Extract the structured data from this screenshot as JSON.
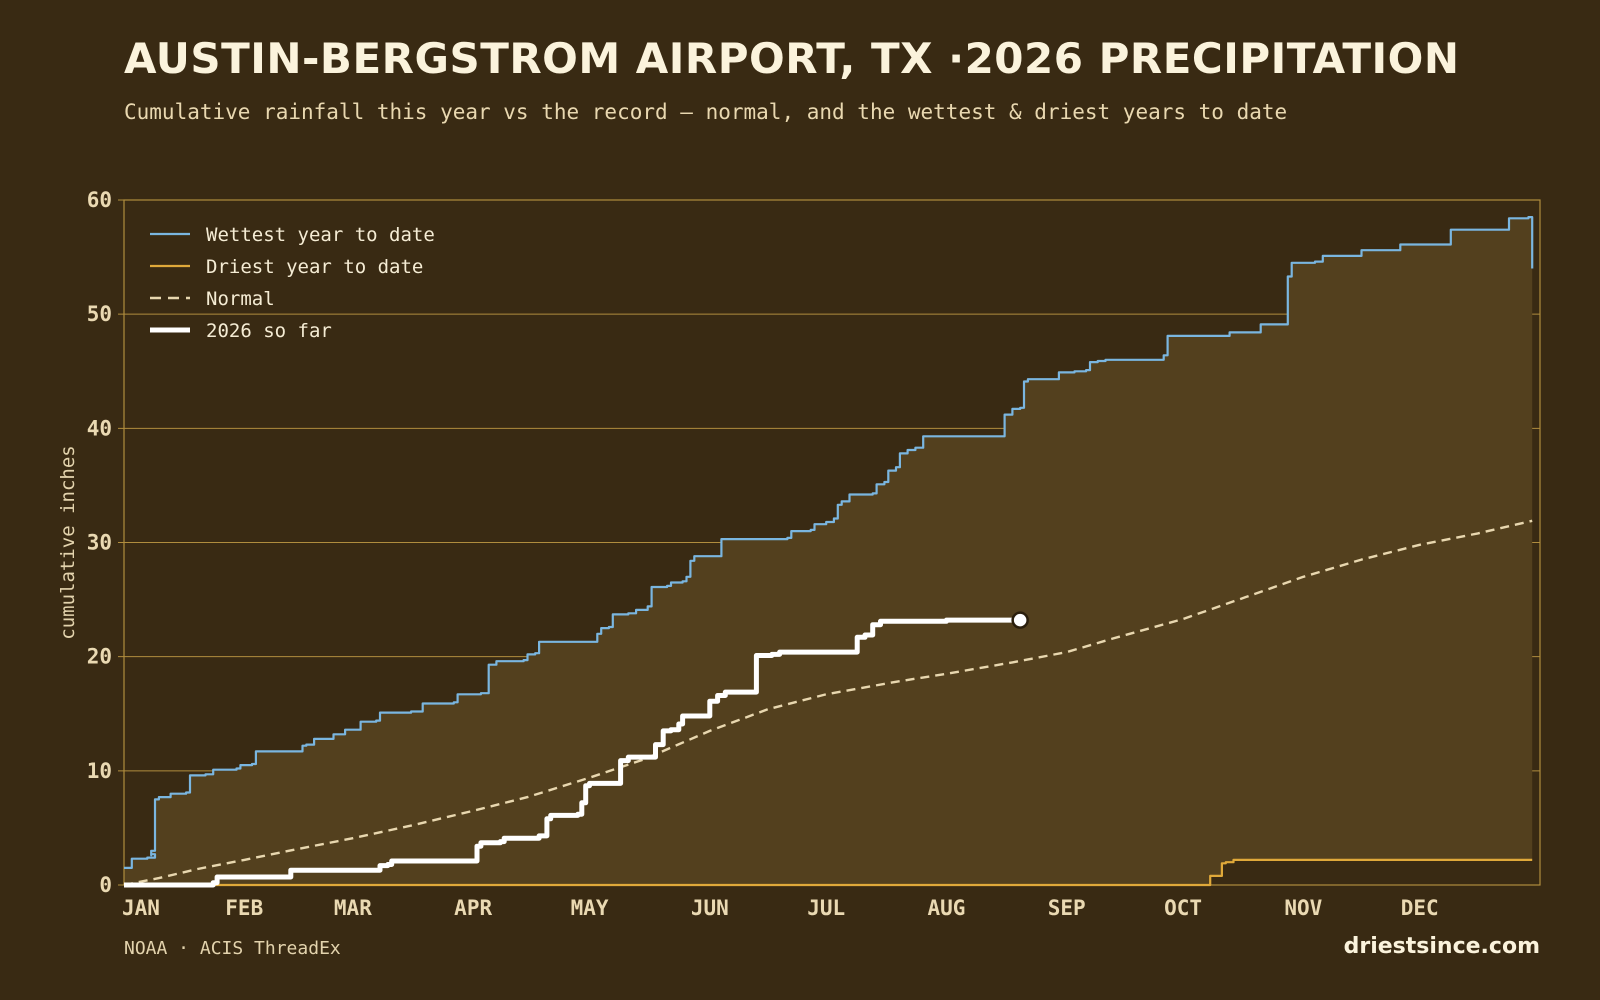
{
  "header": {
    "title": "AUSTIN-BERGSTROM AIRPORT, TX ·2026 PRECIPITATION",
    "subtitle": "Cumulative rainfall this year vs the record — normal, and the wettest & driest years to date"
  },
  "footer": {
    "source": "NOAA · ACIS ThreadEx",
    "brand": "driestsince.com"
  },
  "colors": {
    "background": "#392a13",
    "fill": "#53401e",
    "grid": "#b08d3e",
    "wettest": "#7ab6e0",
    "driest": "#e0a93a",
    "normal": "#e8d7af",
    "current": "#ffffff"
  },
  "chart_data": {
    "type": "line",
    "ylabel": "cumulative inches",
    "ylim": [
      0,
      60
    ],
    "yticks": [
      0,
      10,
      20,
      30,
      40,
      50,
      60
    ],
    "xlim": [
      1,
      366
    ],
    "xticks": [
      {
        "label": "JAN",
        "day": 1
      },
      {
        "label": "FEB",
        "day": 32
      },
      {
        "label": "MAR",
        "day": 60
      },
      {
        "label": "APR",
        "day": 91
      },
      {
        "label": "MAY",
        "day": 121
      },
      {
        "label": "JUN",
        "day": 152
      },
      {
        "label": "JUL",
        "day": 182
      },
      {
        "label": "AUG",
        "day": 213
      },
      {
        "label": "SEP",
        "day": 244
      },
      {
        "label": "OCT",
        "day": 274
      },
      {
        "label": "NOV",
        "day": 305
      },
      {
        "label": "DEC",
        "day": 335
      }
    ],
    "legend_position": "top-left",
    "grid": true,
    "series": [
      {
        "name": "Wettest year to date",
        "key": "wettest",
        "style": "solid",
        "step": true,
        "points": [
          [
            1,
            1.5
          ],
          [
            3,
            2.3
          ],
          [
            7,
            2.4
          ],
          [
            9,
            2.7
          ],
          [
            8,
            2.6
          ],
          [
            8,
            3.0
          ],
          [
            9,
            7.5
          ],
          [
            10,
            7.7
          ],
          [
            12,
            7.7
          ],
          [
            13,
            8.0
          ],
          [
            17,
            8.1
          ],
          [
            18,
            9.6
          ],
          [
            22,
            9.7
          ],
          [
            24,
            10.1
          ],
          [
            30,
            10.2
          ],
          [
            31,
            10.5
          ],
          [
            34,
            10.6
          ],
          [
            35,
            11.7
          ],
          [
            45,
            11.7
          ],
          [
            47,
            12.2
          ],
          [
            48,
            12.3
          ],
          [
            50,
            12.8
          ],
          [
            53,
            12.8
          ],
          [
            55,
            13.2
          ],
          [
            58,
            13.6
          ],
          [
            60,
            13.6
          ],
          [
            62,
            14.3
          ],
          [
            66,
            14.4
          ],
          [
            67,
            15.1
          ],
          [
            75,
            15.2
          ],
          [
            78,
            15.9
          ],
          [
            86,
            16.0
          ],
          [
            87,
            16.7
          ],
          [
            93,
            16.8
          ],
          [
            95,
            19.3
          ],
          [
            97,
            19.6
          ],
          [
            104,
            19.7
          ],
          [
            105,
            20.2
          ],
          [
            107,
            20.3
          ],
          [
            108,
            21.3
          ],
          [
            121,
            21.3
          ],
          [
            123,
            22.0
          ],
          [
            124,
            22.5
          ],
          [
            126,
            22.6
          ],
          [
            127,
            23.7
          ],
          [
            131,
            23.8
          ],
          [
            133,
            24.1
          ],
          [
            135,
            24.1
          ],
          [
            136,
            24.4
          ],
          [
            137,
            26.1
          ],
          [
            141,
            26.2
          ],
          [
            142,
            26.5
          ],
          [
            145,
            26.6
          ],
          [
            146,
            27.0
          ],
          [
            147,
            28.4
          ],
          [
            148,
            28.8
          ],
          [
            154,
            28.8
          ],
          [
            155,
            30.3
          ],
          [
            172,
            30.4
          ],
          [
            173,
            31.0
          ],
          [
            178,
            31.1
          ],
          [
            179,
            31.6
          ],
          [
            182,
            31.8
          ],
          [
            184,
            32.1
          ],
          [
            185,
            33.3
          ],
          [
            186,
            33.6
          ],
          [
            188,
            34.2
          ],
          [
            194,
            34.3
          ],
          [
            195,
            35.1
          ],
          [
            197,
            35.3
          ],
          [
            198,
            36.3
          ],
          [
            200,
            36.6
          ],
          [
            201,
            37.8
          ],
          [
            203,
            38.1
          ],
          [
            205,
            38.3
          ],
          [
            207,
            39.3
          ],
          [
            226,
            39.3
          ],
          [
            228,
            41.2
          ],
          [
            230,
            41.7
          ],
          [
            232,
            41.8
          ],
          [
            233,
            44.1
          ],
          [
            234,
            44.3
          ],
          [
            241,
            44.3
          ],
          [
            242,
            44.9
          ],
          [
            246,
            45.0
          ],
          [
            249,
            45.1
          ],
          [
            250,
            45.8
          ],
          [
            252,
            45.9
          ],
          [
            254,
            46.0
          ],
          [
            267,
            46.0
          ],
          [
            269,
            46.4
          ],
          [
            270,
            48.1
          ],
          [
            284,
            48.1
          ],
          [
            286,
            48.4
          ],
          [
            292,
            48.4
          ],
          [
            294,
            49.1
          ],
          [
            300,
            49.1
          ],
          [
            301,
            53.3
          ],
          [
            302,
            54.5
          ],
          [
            308,
            54.6
          ],
          [
            310,
            55.1
          ],
          [
            318,
            55.1
          ],
          [
            320,
            55.6
          ],
          [
            328,
            55.6
          ],
          [
            330,
            56.1
          ],
          [
            342,
            56.1
          ],
          [
            343,
            57.4
          ],
          [
            357,
            57.4
          ],
          [
            358,
            58.4
          ],
          [
            362,
            58.4
          ],
          [
            363,
            58.5
          ],
          [
            364,
            54.0
          ]
        ]
      },
      {
        "name": "Driest year to date",
        "key": "driest",
        "style": "solid",
        "step": true,
        "points": [
          [
            1,
            0.0
          ],
          [
            279,
            0.0
          ],
          [
            281,
            0.8
          ],
          [
            283,
            0.8
          ],
          [
            284,
            1.9
          ],
          [
            285,
            2.0
          ],
          [
            287,
            2.2
          ],
          [
            364,
            2.2
          ]
        ]
      },
      {
        "name": "Normal",
        "key": "normal",
        "style": "dashed",
        "step": false,
        "points": [
          [
            1,
            0.0
          ],
          [
            10,
            0.6
          ],
          [
            20,
            1.4
          ],
          [
            32,
            2.2
          ],
          [
            45,
            3.1
          ],
          [
            60,
            4.1
          ],
          [
            75,
            5.2
          ],
          [
            91,
            6.5
          ],
          [
            105,
            7.7
          ],
          [
            121,
            9.4
          ],
          [
            135,
            11.0
          ],
          [
            152,
            13.5
          ],
          [
            167,
            15.4
          ],
          [
            182,
            16.7
          ],
          [
            200,
            17.8
          ],
          [
            213,
            18.5
          ],
          [
            230,
            19.5
          ],
          [
            244,
            20.4
          ],
          [
            256,
            21.6
          ],
          [
            274,
            23.3
          ],
          [
            290,
            25.2
          ],
          [
            305,
            27.0
          ],
          [
            320,
            28.5
          ],
          [
            335,
            29.8
          ],
          [
            350,
            30.8
          ],
          [
            364,
            31.9
          ]
        ]
      },
      {
        "name": "2026 so far",
        "key": "current",
        "style": "thick",
        "step": true,
        "end_marker": true,
        "points": [
          [
            1,
            0.0
          ],
          [
            23,
            0.0
          ],
          [
            24,
            0.2
          ],
          [
            25,
            0.7
          ],
          [
            43,
            0.7
          ],
          [
            44,
            1.3
          ],
          [
            66,
            1.3
          ],
          [
            67,
            1.7
          ],
          [
            69,
            1.8
          ],
          [
            70,
            2.1
          ],
          [
            91,
            2.1
          ],
          [
            92,
            3.4
          ],
          [
            93,
            3.7
          ],
          [
            98,
            3.8
          ],
          [
            99,
            4.1
          ],
          [
            106,
            4.1
          ],
          [
            108,
            4.3
          ],
          [
            110,
            5.8
          ],
          [
            111,
            6.1
          ],
          [
            118,
            6.2
          ],
          [
            119,
            7.2
          ],
          [
            120,
            8.7
          ],
          [
            121,
            8.9
          ],
          [
            128,
            8.9
          ],
          [
            129,
            10.9
          ],
          [
            131,
            11.2
          ],
          [
            137,
            11.2
          ],
          [
            138,
            12.3
          ],
          [
            140,
            13.5
          ],
          [
            142,
            13.6
          ],
          [
            144,
            14.1
          ],
          [
            145,
            14.8
          ],
          [
            151,
            14.8
          ],
          [
            152,
            16.1
          ],
          [
            154,
            16.6
          ],
          [
            156,
            16.9
          ],
          [
            163,
            16.9
          ],
          [
            164,
            20.1
          ],
          [
            168,
            20.2
          ],
          [
            170,
            20.4
          ],
          [
            188,
            20.4
          ],
          [
            190,
            21.7
          ],
          [
            192,
            21.9
          ],
          [
            194,
            22.8
          ],
          [
            196,
            23.1
          ],
          [
            212,
            23.1
          ],
          [
            213,
            23.2
          ],
          [
            232,
            23.2
          ]
        ]
      }
    ]
  }
}
